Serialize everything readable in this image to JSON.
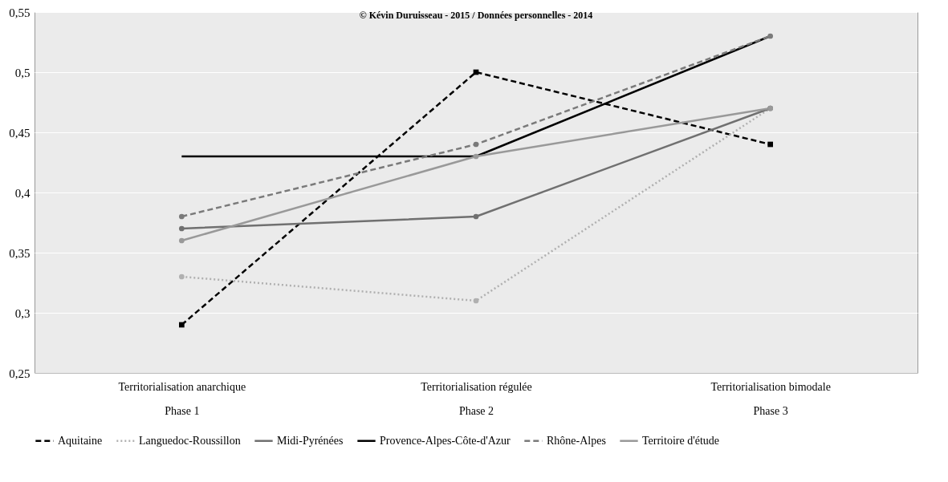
{
  "chart_data": {
    "type": "line",
    "title": "© Kévin Duruisseau - 2015 / Données personnelles - 2014",
    "categories": [
      "Territorialisation anarchique\nPhase 1",
      "Territorialisation régulée\nPhase 2",
      "Territorialisation bimodale\nPhase 3"
    ],
    "ylim": [
      0.25,
      0.55
    ],
    "yticks": [
      {
        "value": 0.25,
        "label": "0,25"
      },
      {
        "value": 0.3,
        "label": "0,3"
      },
      {
        "value": 0.35,
        "label": "0,35"
      },
      {
        "value": 0.4,
        "label": "0,4"
      },
      {
        "value": 0.45,
        "label": "0,45"
      },
      {
        "value": 0.5,
        "label": "0,5"
      },
      {
        "value": 0.55,
        "label": "0,55"
      }
    ],
    "grid": "y",
    "legend": "bottom",
    "series": [
      {
        "name": "Aquitaine",
        "color": "#000000",
        "line_style": "dashed",
        "marker": "square",
        "values": [
          0.29,
          0.5,
          0.44
        ]
      },
      {
        "name": "Languedoc-Roussillon",
        "color": "#b0b0b0",
        "line_style": "dotted",
        "marker": "circle",
        "values": [
          0.33,
          0.31,
          0.47
        ]
      },
      {
        "name": "Midi-Pyrénées",
        "color": "#707070",
        "line_style": "solid",
        "marker": "circle",
        "values": [
          0.37,
          0.38,
          0.47
        ]
      },
      {
        "name": "Provence-Alpes-Côte-d'Azur",
        "color": "#000000",
        "line_style": "solid",
        "marker": "none",
        "values": [
          0.43,
          0.43,
          0.53
        ]
      },
      {
        "name": "Rhône-Alpes",
        "color": "#7a7a7a",
        "line_style": "dashed",
        "marker": "circle",
        "values": [
          0.38,
          0.44,
          0.53
        ]
      },
      {
        "name": "Territoire d'étude",
        "color": "#999999",
        "line_style": "solid",
        "marker": "circle",
        "values": [
          0.36,
          0.43,
          0.47
        ]
      }
    ]
  }
}
